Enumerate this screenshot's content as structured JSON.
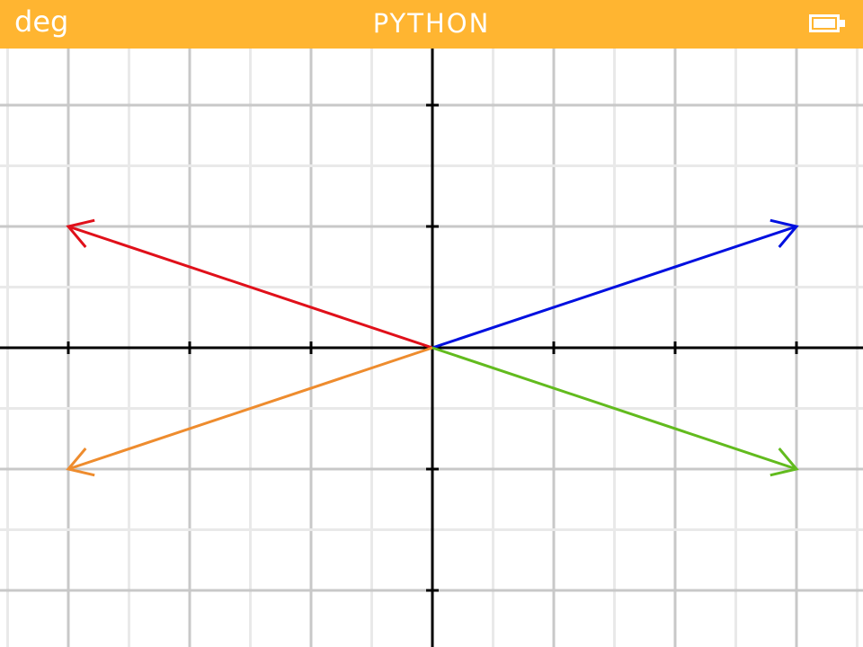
{
  "status_bar": {
    "angle_mode": "deg",
    "title": "PYTHON",
    "battery_level": 1.0,
    "color": "#ffb531"
  },
  "chart_data": {
    "type": "vector-plot",
    "xlim": [
      -3.6,
      3.6
    ],
    "ylim": [
      -2.5,
      2.5
    ],
    "x_grid_step": 0.5,
    "y_grid_step": 0.5,
    "x_tick_step": 1,
    "y_tick_step": 1,
    "grid": true,
    "vectors": [
      {
        "color": "#e0101a",
        "x": -3,
        "y": 1
      },
      {
        "color": "#0010e0",
        "x": 3,
        "y": 1
      },
      {
        "color": "#ee8c2e",
        "x": -3,
        "y": -1
      },
      {
        "color": "#62bb1e",
        "x": 3,
        "y": -1
      }
    ]
  }
}
